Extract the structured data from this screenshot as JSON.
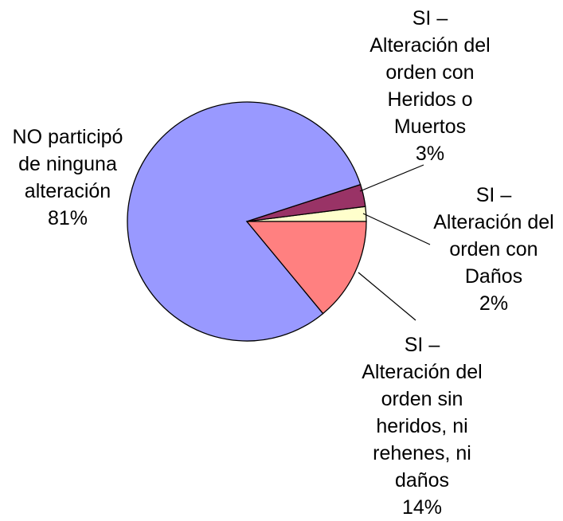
{
  "chart_data": {
    "type": "pie",
    "categories": [
      "SI – Alteración del orden sin heridos, ni rehenes, ni daños",
      "NO participó de ninguna alteración",
      "SI – Alteración del orden con Heridos o Muertos",
      "SI – Alteración del orden con Daños"
    ],
    "values": [
      14,
      81,
      3,
      2
    ],
    "value_labels": [
      "14%",
      "81%",
      "3%",
      "2%"
    ],
    "colors": [
      "#ff8080",
      "#9999ff",
      "#993366",
      "#ffffcc"
    ]
  }
}
